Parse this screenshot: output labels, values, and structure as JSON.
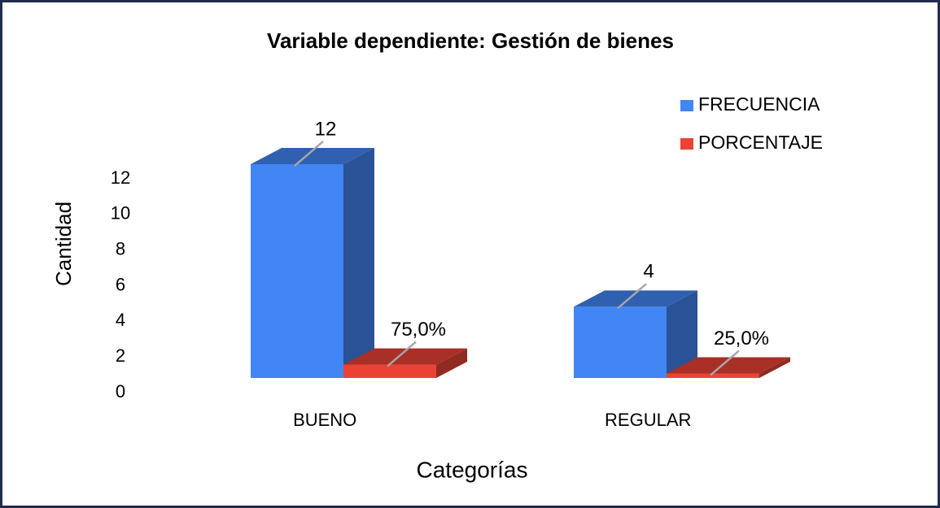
{
  "chart_data": {
    "type": "bar3d",
    "title": "Variable dependiente: Gestión de bienes",
    "x_label": "Categorías",
    "y_label": "Cantidad",
    "categories": [
      "BUENO",
      "REGULAR"
    ],
    "series": [
      {
        "name": "FRECUENCIA",
        "color": "#4285f4",
        "values": [
          12,
          4
        ]
      },
      {
        "name": "PORCENTAJE",
        "color": "#ea4335",
        "values": [
          0.75,
          0.25
        ],
        "value_labels": [
          "75,0%",
          "25,0%"
        ]
      }
    ],
    "ylim": [
      0,
      12
    ],
    "yticks": [
      0,
      2,
      4,
      6,
      8,
      10,
      12
    ],
    "grid": false,
    "legend": "top-right"
  }
}
